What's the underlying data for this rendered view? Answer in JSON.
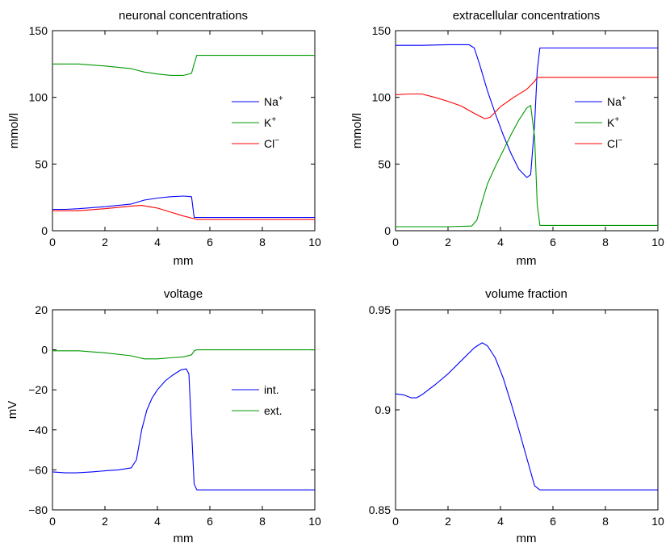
{
  "figure": {
    "panels": [
      {
        "title": "neuronal concentrations",
        "xlabel": "mm",
        "ylabel": "mmol/l",
        "legend_placement": "center-right"
      },
      {
        "title": "extracellular concentrations",
        "xlabel": "mm",
        "ylabel": "mmol/l",
        "legend_placement": "center-right"
      },
      {
        "title": "voltage",
        "xlabel": "mm",
        "ylabel": "mV",
        "legend_placement": "center-right"
      },
      {
        "title": "volume fraction",
        "xlabel": "mm",
        "ylabel": "",
        "legend_placement": "none"
      }
    ]
  },
  "colors": {
    "blue": "#0000ff",
    "green": "#009900",
    "red": "#ff0000",
    "axis": "#000000"
  },
  "chart_data": [
    {
      "type": "line",
      "title": "neuronal concentrations",
      "xlabel": "mm",
      "ylabel": "mmol/l",
      "xlim": [
        0,
        10
      ],
      "ylim": [
        0,
        150
      ],
      "xticks": [
        "0",
        "2",
        "4",
        "6",
        "8",
        "10"
      ],
      "yticks": [
        "0",
        "50",
        "100",
        "150"
      ],
      "grid": false,
      "legend": "center-right",
      "series": [
        {
          "name": "Na",
          "sup": "+",
          "color": "#0000ff",
          "x": [
            0,
            0.5,
            1,
            2,
            3,
            3.5,
            4,
            4.5,
            5,
            5.3,
            5.4,
            5.5,
            6,
            8,
            10
          ],
          "y": [
            16,
            16,
            16.5,
            18,
            20,
            23,
            24.5,
            25.5,
            26,
            25.5,
            10,
            10,
            10,
            10,
            10
          ]
        },
        {
          "name": "K",
          "sup": "+",
          "color": "#009900",
          "x": [
            0,
            1,
            2,
            3,
            3.5,
            4,
            4.5,
            5,
            5.3,
            5.4,
            5.5,
            6,
            8,
            10
          ],
          "y": [
            125,
            125,
            123.5,
            121.5,
            119,
            117.5,
            116.5,
            116.5,
            118,
            125,
            131.5,
            131.5,
            131.5,
            131.5
          ]
        },
        {
          "name": "Cl",
          "sup": "−",
          "color": "#ff0000",
          "x": [
            0,
            1,
            2,
            3,
            3.4,
            4,
            4.5,
            5,
            5.4,
            5.5,
            6,
            8,
            10
          ],
          "y": [
            15,
            15,
            16.5,
            18.5,
            19,
            17,
            14,
            11,
            9,
            8.5,
            8.5,
            8.5,
            8.5
          ]
        }
      ]
    },
    {
      "type": "line",
      "title": "extracellular concentrations",
      "xlabel": "mm",
      "ylabel": "mmol/l",
      "xlim": [
        0,
        10
      ],
      "ylim": [
        0,
        150
      ],
      "xticks": [
        "0",
        "2",
        "4",
        "6",
        "8",
        "10"
      ],
      "yticks": [
        "0",
        "50",
        "100",
        "150"
      ],
      "grid": false,
      "legend": "center-right",
      "series": [
        {
          "name": "Na",
          "sup": "+",
          "color": "#0000ff",
          "x": [
            0,
            1,
            2,
            2.8,
            3.0,
            3.2,
            3.5,
            3.8,
            4.1,
            4.4,
            4.7,
            5.0,
            5.15,
            5.3,
            5.4,
            5.5,
            6,
            8,
            10
          ],
          "y": [
            139,
            139,
            139.5,
            139.5,
            137,
            125,
            105,
            88,
            72,
            58,
            46,
            40,
            42,
            80,
            120,
            137,
            137,
            137,
            137
          ]
        },
        {
          "name": "K",
          "sup": "+",
          "color": "#009900",
          "x": [
            0,
            1,
            2,
            2.9,
            3.1,
            3.3,
            3.5,
            3.8,
            4.1,
            4.4,
            4.7,
            5.0,
            5.15,
            5.3,
            5.4,
            5.5,
            6,
            8,
            10
          ],
          "y": [
            3,
            3,
            3,
            3.5,
            8,
            22,
            35,
            48,
            60,
            72,
            83,
            92,
            94,
            70,
            20,
            4,
            4,
            4,
            4
          ]
        },
        {
          "name": "Cl",
          "sup": "−",
          "color": "#ff0000",
          "x": [
            0,
            0.5,
            1,
            1.5,
            2,
            2.5,
            3,
            3.4,
            3.6,
            4,
            4.5,
            5,
            5.3,
            5.4,
            5.5,
            6,
            8,
            10
          ],
          "y": [
            102,
            102.5,
            102.5,
            100,
            97,
            93.5,
            88,
            84,
            85,
            93,
            100,
            106,
            112,
            115,
            115,
            115,
            115,
            115
          ]
        }
      ]
    },
    {
      "type": "line",
      "title": "voltage",
      "xlabel": "mm",
      "ylabel": "mV",
      "xlim": [
        0,
        10
      ],
      "ylim": [
        -80,
        20
      ],
      "xticks": [
        "0",
        "2",
        "4",
        "6",
        "8",
        "10"
      ],
      "yticks": [
        "−80",
        "−60",
        "−40",
        "−20",
        "0",
        "20"
      ],
      "grid": false,
      "legend": "center-right",
      "series": [
        {
          "name": "int.",
          "sup": "",
          "color": "#0000ff",
          "x": [
            0,
            0.5,
            0.9,
            1.5,
            2,
            2.5,
            3,
            3.2,
            3.4,
            3.6,
            3.8,
            4.0,
            4.3,
            4.6,
            4.9,
            5.1,
            5.2,
            5.3,
            5.4,
            5.5,
            6,
            8,
            10
          ],
          "y": [
            -61,
            -61.5,
            -61.5,
            -61,
            -60.5,
            -60,
            -59,
            -55,
            -40,
            -30,
            -24,
            -20,
            -15.5,
            -12.5,
            -10,
            -9.5,
            -12,
            -40,
            -67,
            -70,
            -70,
            -70,
            -70
          ]
        },
        {
          "name": "ext.",
          "sup": "",
          "color": "#009900",
          "x": [
            0,
            1,
            2,
            3,
            3.5,
            4,
            4.5,
            5,
            5.3,
            5.4,
            5.5,
            6,
            8,
            10
          ],
          "y": [
            -0.5,
            -0.5,
            -1.5,
            -3,
            -4.5,
            -4.5,
            -4,
            -3.5,
            -2.5,
            -0.5,
            0,
            0,
            0,
            0
          ]
        }
      ]
    },
    {
      "type": "line",
      "title": "volume fraction",
      "xlabel": "mm",
      "ylabel": "",
      "xlim": [
        0,
        10
      ],
      "ylim": [
        0.85,
        0.95
      ],
      "xticks": [
        "0",
        "2",
        "4",
        "6",
        "8",
        "10"
      ],
      "yticks": [
        "0.85",
        "0.9",
        "0.95"
      ],
      "grid": false,
      "legend": "none",
      "series": [
        {
          "name": "volume fraction",
          "sup": "",
          "color": "#0000ff",
          "x": [
            0,
            0.3,
            0.6,
            0.8,
            1.0,
            1.5,
            2,
            2.5,
            3.0,
            3.3,
            3.5,
            3.8,
            4.1,
            4.4,
            4.7,
            5.0,
            5.3,
            5.5,
            6,
            8,
            10
          ],
          "y": [
            0.908,
            0.9075,
            0.906,
            0.906,
            0.9075,
            0.9125,
            0.918,
            0.9245,
            0.931,
            0.9335,
            0.932,
            0.926,
            0.916,
            0.9035,
            0.89,
            0.876,
            0.862,
            0.86,
            0.86,
            0.86,
            0.86
          ]
        }
      ]
    }
  ]
}
